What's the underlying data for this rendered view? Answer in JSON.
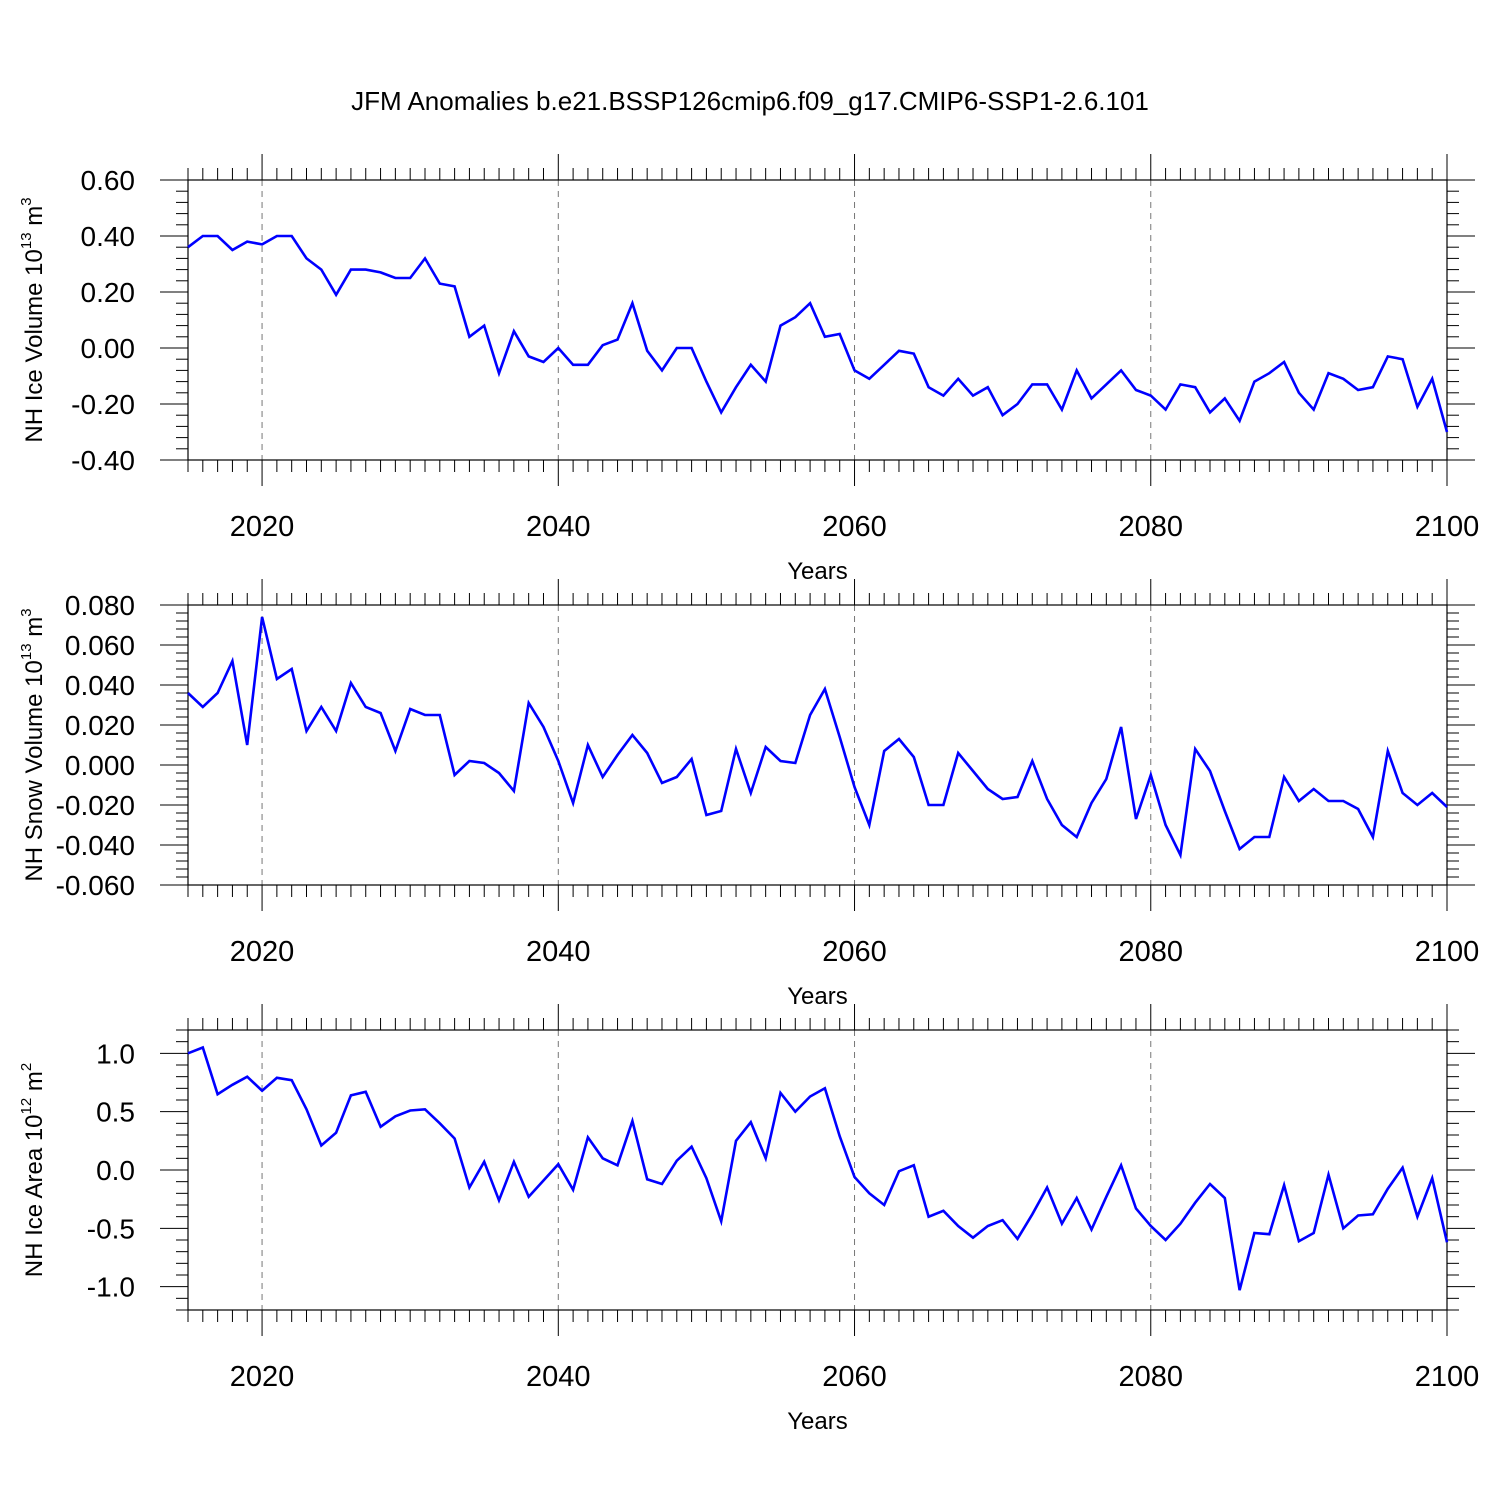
{
  "figure": {
    "title": "JFM Anomalies b.e21.BSSP126cmip6.f09_g17.CMIP6-SSP1-2.6.101"
  },
  "chart_data": [
    {
      "type": "line",
      "ylabel": "NH Ice Volume",
      "ylabel_unit": "10^13 m^3",
      "ylabel_parts": [
        "NH Ice Volume 10",
        "13",
        " m",
        "3"
      ],
      "xlabel": "Years",
      "xlim": [
        2015,
        2100
      ],
      "ylim": [
        -0.4,
        0.6
      ],
      "xticks": [
        2020,
        2040,
        2060,
        2080,
        2100
      ],
      "xtick_labels": [
        "2020",
        "2040",
        "2060",
        "2080",
        "2100"
      ],
      "yticks": [
        -0.4,
        -0.2,
        0.0,
        0.2,
        0.4,
        0.6
      ],
      "ytick_labels": [
        "-0.40",
        "-0.20",
        "0.00",
        "0.20",
        "0.40",
        "0.60"
      ],
      "grid": "vertical dashed at major x ticks",
      "line_color": "#0000ff",
      "x_start": 2015,
      "values": [
        0.36,
        0.4,
        0.4,
        0.35,
        0.38,
        0.37,
        0.4,
        0.4,
        0.32,
        0.28,
        0.19,
        0.28,
        0.28,
        0.27,
        0.25,
        0.25,
        0.32,
        0.23,
        0.22,
        0.04,
        0.08,
        -0.09,
        0.06,
        -0.03,
        -0.05,
        0.0,
        -0.06,
        -0.06,
        0.01,
        0.03,
        0.16,
        -0.01,
        -0.08,
        0.0,
        0.0,
        -0.12,
        -0.23,
        -0.14,
        -0.06,
        -0.12,
        0.08,
        0.11,
        0.16,
        0.04,
        0.05,
        -0.08,
        -0.11,
        -0.06,
        -0.01,
        -0.02,
        -0.14,
        -0.17,
        -0.11,
        -0.17,
        -0.14,
        -0.24,
        -0.2,
        -0.13,
        -0.13,
        -0.22,
        -0.08,
        -0.18,
        -0.13,
        -0.08,
        -0.15,
        -0.17,
        -0.22,
        -0.13,
        -0.14,
        -0.23,
        -0.18,
        -0.26,
        -0.12,
        -0.09,
        -0.05,
        -0.16,
        -0.22,
        -0.09,
        -0.11,
        -0.15,
        -0.14,
        -0.03,
        -0.04,
        -0.21,
        -0.11,
        -0.3
      ]
    },
    {
      "type": "line",
      "ylabel": "NH Snow Volume",
      "ylabel_unit": "10^13 m^3",
      "ylabel_parts": [
        "NH Snow Volume 10",
        "13",
        " m",
        "3"
      ],
      "xlabel": "Years",
      "xlim": [
        2015,
        2100
      ],
      "ylim": [
        -0.06,
        0.08
      ],
      "xticks": [
        2020,
        2040,
        2060,
        2080,
        2100
      ],
      "xtick_labels": [
        "2020",
        "2040",
        "2060",
        "2080",
        "2100"
      ],
      "yticks": [
        -0.06,
        -0.04,
        -0.02,
        0.0,
        0.02,
        0.04,
        0.06,
        0.08
      ],
      "ytick_labels": [
        "-0.060",
        "-0.040",
        "-0.020",
        "0.000",
        "0.020",
        "0.040",
        "0.060",
        "0.080"
      ],
      "grid": "vertical dashed at major x ticks",
      "line_color": "#0000ff",
      "x_start": 2015,
      "values": [
        0.036,
        0.029,
        0.036,
        0.052,
        0.01,
        0.074,
        0.043,
        0.048,
        0.017,
        0.029,
        0.017,
        0.041,
        0.029,
        0.026,
        0.007,
        0.028,
        0.025,
        0.025,
        -0.005,
        0.002,
        0.001,
        -0.004,
        -0.013,
        0.031,
        0.019,
        0.002,
        -0.019,
        0.01,
        -0.006,
        0.005,
        0.015,
        0.006,
        -0.009,
        -0.006,
        0.003,
        -0.025,
        -0.023,
        0.008,
        -0.014,
        0.009,
        0.002,
        0.001,
        0.025,
        0.038,
        0.014,
        -0.011,
        -0.03,
        0.007,
        0.013,
        0.004,
        -0.02,
        -0.02,
        0.006,
        -0.003,
        -0.012,
        -0.017,
        -0.016,
        0.002,
        -0.017,
        -0.03,
        -0.036,
        -0.019,
        -0.007,
        0.019,
        -0.027,
        -0.005,
        -0.03,
        -0.045,
        0.008,
        -0.003,
        -0.023,
        -0.042,
        -0.036,
        -0.036,
        -0.006,
        -0.018,
        -0.012,
        -0.018,
        -0.018,
        -0.022,
        -0.036,
        0.007,
        -0.014,
        -0.02,
        -0.014,
        -0.021
      ]
    },
    {
      "type": "line",
      "ylabel": "NH Ice Area",
      "ylabel_unit": "10^12 m^2",
      "ylabel_parts": [
        "NH Ice Area 10",
        "12",
        " m",
        "2"
      ],
      "xlabel": "Years",
      "xlim": [
        2015,
        2100
      ],
      "ylim": [
        -1.2,
        1.2
      ],
      "xticks": [
        2020,
        2040,
        2060,
        2080,
        2100
      ],
      "xtick_labels": [
        "2020",
        "2040",
        "2060",
        "2080",
        "2100"
      ],
      "yticks": [
        -1.0,
        -0.5,
        0.0,
        0.5,
        1.0
      ],
      "ytick_labels": [
        "-1.0",
        "-0.5",
        "0.0",
        "0.5",
        "1.0"
      ],
      "grid": "vertical dashed at major x ticks",
      "line_color": "#0000ff",
      "x_start": 2015,
      "values": [
        1.0,
        1.05,
        0.65,
        0.73,
        0.8,
        0.68,
        0.79,
        0.77,
        0.52,
        0.21,
        0.32,
        0.64,
        0.67,
        0.37,
        0.46,
        0.51,
        0.52,
        0.4,
        0.27,
        -0.15,
        0.07,
        -0.26,
        0.07,
        -0.23,
        -0.09,
        0.05,
        -0.17,
        0.28,
        0.1,
        0.04,
        0.42,
        -0.08,
        -0.12,
        0.08,
        0.2,
        -0.07,
        -0.44,
        0.25,
        0.41,
        0.1,
        0.66,
        0.5,
        0.63,
        0.7,
        0.29,
        -0.06,
        -0.2,
        -0.3,
        -0.01,
        0.04,
        -0.4,
        -0.35,
        -0.48,
        -0.58,
        -0.48,
        -0.43,
        -0.59,
        -0.38,
        -0.15,
        -0.46,
        -0.24,
        -0.51,
        -0.23,
        0.04,
        -0.33,
        -0.48,
        -0.6,
        -0.46,
        -0.28,
        -0.12,
        -0.24,
        -1.03,
        -0.54,
        -0.55,
        -0.13,
        -0.61,
        -0.54,
        -0.04,
        -0.5,
        -0.39,
        -0.38,
        -0.16,
        0.02,
        -0.4,
        -0.07,
        -0.62
      ]
    }
  ]
}
